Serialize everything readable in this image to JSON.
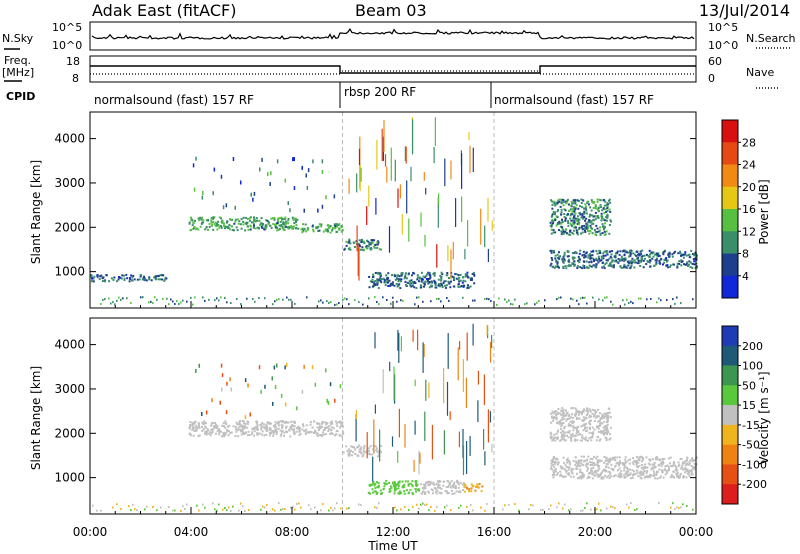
{
  "header": {
    "title": "Adak East (fitACF)",
    "beam": "Beam 03",
    "date": "13/Jul/2014"
  },
  "top_panels": {
    "nsky_label": "N.Sky",
    "nsearch_label": "N.Search",
    "count_ticks": [
      "10^5",
      "10^0"
    ],
    "freq_label_1": "Freq.",
    "freq_label_2": "[MHz]",
    "freq_ticks": [
      "18",
      "8"
    ],
    "nave_label": "Nave",
    "nave_ticks": [
      "60",
      "0"
    ],
    "cpid_label": "CPID"
  },
  "cpid_segments": [
    {
      "name": "normalsound (fast) 157 RF",
      "start_h": 0,
      "end_h": 10
    },
    {
      "name": "rbsp 200 RF",
      "start_h": 10,
      "end_h": 16
    },
    {
      "name": "normalsound (fast) 157 RF",
      "start_h": 16,
      "end_h": 24
    }
  ],
  "colorbars": {
    "power": {
      "label": "Power [dB]",
      "ticks": [
        "4",
        "8",
        "12",
        "16",
        "20",
        "24",
        "28"
      ],
      "colors": [
        "#1028d8",
        "#1e3f8c",
        "#3a8f6a",
        "#58c040",
        "#e6c814",
        "#f08a14",
        "#e64a14",
        "#d81010"
      ]
    },
    "velocity": {
      "label": "Velocity [m s⁻¹]",
      "ticks": [
        "200",
        "100",
        "50",
        "15",
        "-15",
        "-50",
        "-100",
        "-200"
      ],
      "colors": [
        "#1e3cb4",
        "#1e5a78",
        "#3c9650",
        "#5ac83c",
        "#c0c0c0",
        "#f0b41e",
        "#f08214",
        "#e65014",
        "#dc1e1e"
      ]
    }
  },
  "chart_data": [
    {
      "type": "heatmap",
      "title": "Power",
      "xlabel": "Time UT",
      "ylabel": "Slant Range [km]",
      "xlim": [
        "00:00",
        "24:00"
      ],
      "ylim": [
        180,
        4600
      ],
      "x_ticks": [
        "00:00",
        "04:00",
        "08:00",
        "12:00",
        "16:00",
        "20:00",
        "00:00"
      ],
      "y_ticks": [
        "1000",
        "2000",
        "3000",
        "4000"
      ],
      "value_label": "Power [dB]",
      "features": [
        {
          "desc": "band",
          "time_h": [
            0.0,
            3.0
          ],
          "range_km": [
            800,
            950
          ],
          "value_db": 6
        },
        {
          "desc": "band",
          "time_h": [
            3.9,
            8.2
          ],
          "range_km": [
            1950,
            2250
          ],
          "value_db": 10
        },
        {
          "desc": "band",
          "time_h": [
            8.2,
            10.0
          ],
          "range_km": [
            1900,
            2100
          ],
          "value_db": 10
        },
        {
          "desc": "band",
          "time_h": [
            10.0,
            11.5
          ],
          "range_km": [
            1500,
            1750
          ],
          "value_db": 8
        },
        {
          "desc": "band",
          "time_h": [
            11.0,
            15.2
          ],
          "range_km": [
            650,
            1000
          ],
          "value_db": 6
        },
        {
          "desc": "band",
          "time_h": [
            18.2,
            20.6
          ],
          "range_km": [
            1850,
            2650
          ],
          "value_db": 8
        },
        {
          "desc": "band",
          "time_h": [
            18.2,
            24.0
          ],
          "range_km": [
            1100,
            1500
          ],
          "value_db": 6
        }
      ]
    },
    {
      "type": "heatmap",
      "title": "Velocity",
      "xlabel": "Time UT",
      "ylabel": "Slant Range [km]",
      "xlim": [
        "00:00",
        "24:00"
      ],
      "ylim": [
        180,
        4600
      ],
      "x_ticks": [
        "00:00",
        "04:00",
        "08:00",
        "12:00",
        "16:00",
        "20:00",
        "00:00"
      ],
      "y_ticks": [
        "1000",
        "2000",
        "3000",
        "4000"
      ],
      "value_label": "Velocity [m s⁻¹]",
      "features": [
        {
          "desc": "band",
          "time_h": [
            3.9,
            10.0
          ],
          "range_km": [
            1950,
            2300
          ],
          "value": 0
        },
        {
          "desc": "band",
          "time_h": [
            10.0,
            11.5
          ],
          "range_km": [
            1500,
            1750
          ],
          "value": 0
        },
        {
          "desc": "band",
          "time_h": [
            11.0,
            13.0
          ],
          "range_km": [
            650,
            950
          ],
          "value": 30
        },
        {
          "desc": "band",
          "time_h": [
            13.0,
            14.8
          ],
          "range_km": [
            650,
            950
          ],
          "value": 0
        },
        {
          "desc": "band",
          "time_h": [
            14.8,
            15.5
          ],
          "range_km": [
            700,
            880
          ],
          "value": -40
        },
        {
          "desc": "band",
          "time_h": [
            18.2,
            20.6
          ],
          "range_km": [
            1850,
            2600
          ],
          "value": 0
        },
        {
          "desc": "band",
          "time_h": [
            18.2,
            24.0
          ],
          "range_km": [
            1000,
            1500
          ],
          "value": 0
        }
      ]
    }
  ]
}
